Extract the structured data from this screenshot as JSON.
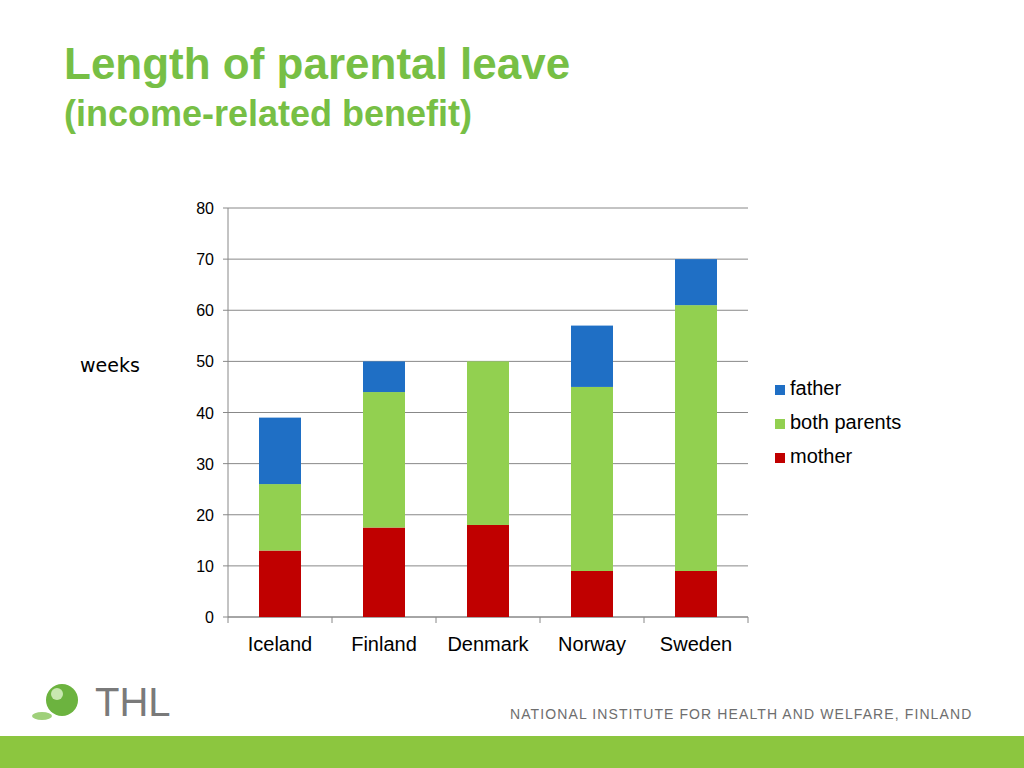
{
  "chart_data": {
    "type": "bar",
    "stacked": true,
    "title": "Length of parental leave",
    "subtitle": "(income-related benefit)",
    "y_label": "weeks",
    "categories": [
      "Iceland",
      "Finland",
      "Denmark",
      "Norway",
      "Sweden"
    ],
    "series": [
      {
        "name": "mother",
        "color": "#c00000",
        "values": [
          13,
          17.5,
          18,
          9,
          9
        ]
      },
      {
        "name": "both parents",
        "color": "#92d050",
        "values": [
          13,
          26.5,
          32,
          36,
          52
        ]
      },
      {
        "name": "father",
        "color": "#1f6fc5",
        "values": [
          13,
          6,
          0,
          12,
          9
        ]
      }
    ],
    "ylim": [
      0,
      80
    ],
    "yticks": [
      0,
      10,
      20,
      30,
      40,
      50,
      60,
      70,
      80
    ],
    "grid": true,
    "legend": "right"
  },
  "footer": {
    "logo": "THL",
    "text": "NATIONAL INSTITUTE FOR HEALTH AND WELFARE, FINLAND"
  }
}
